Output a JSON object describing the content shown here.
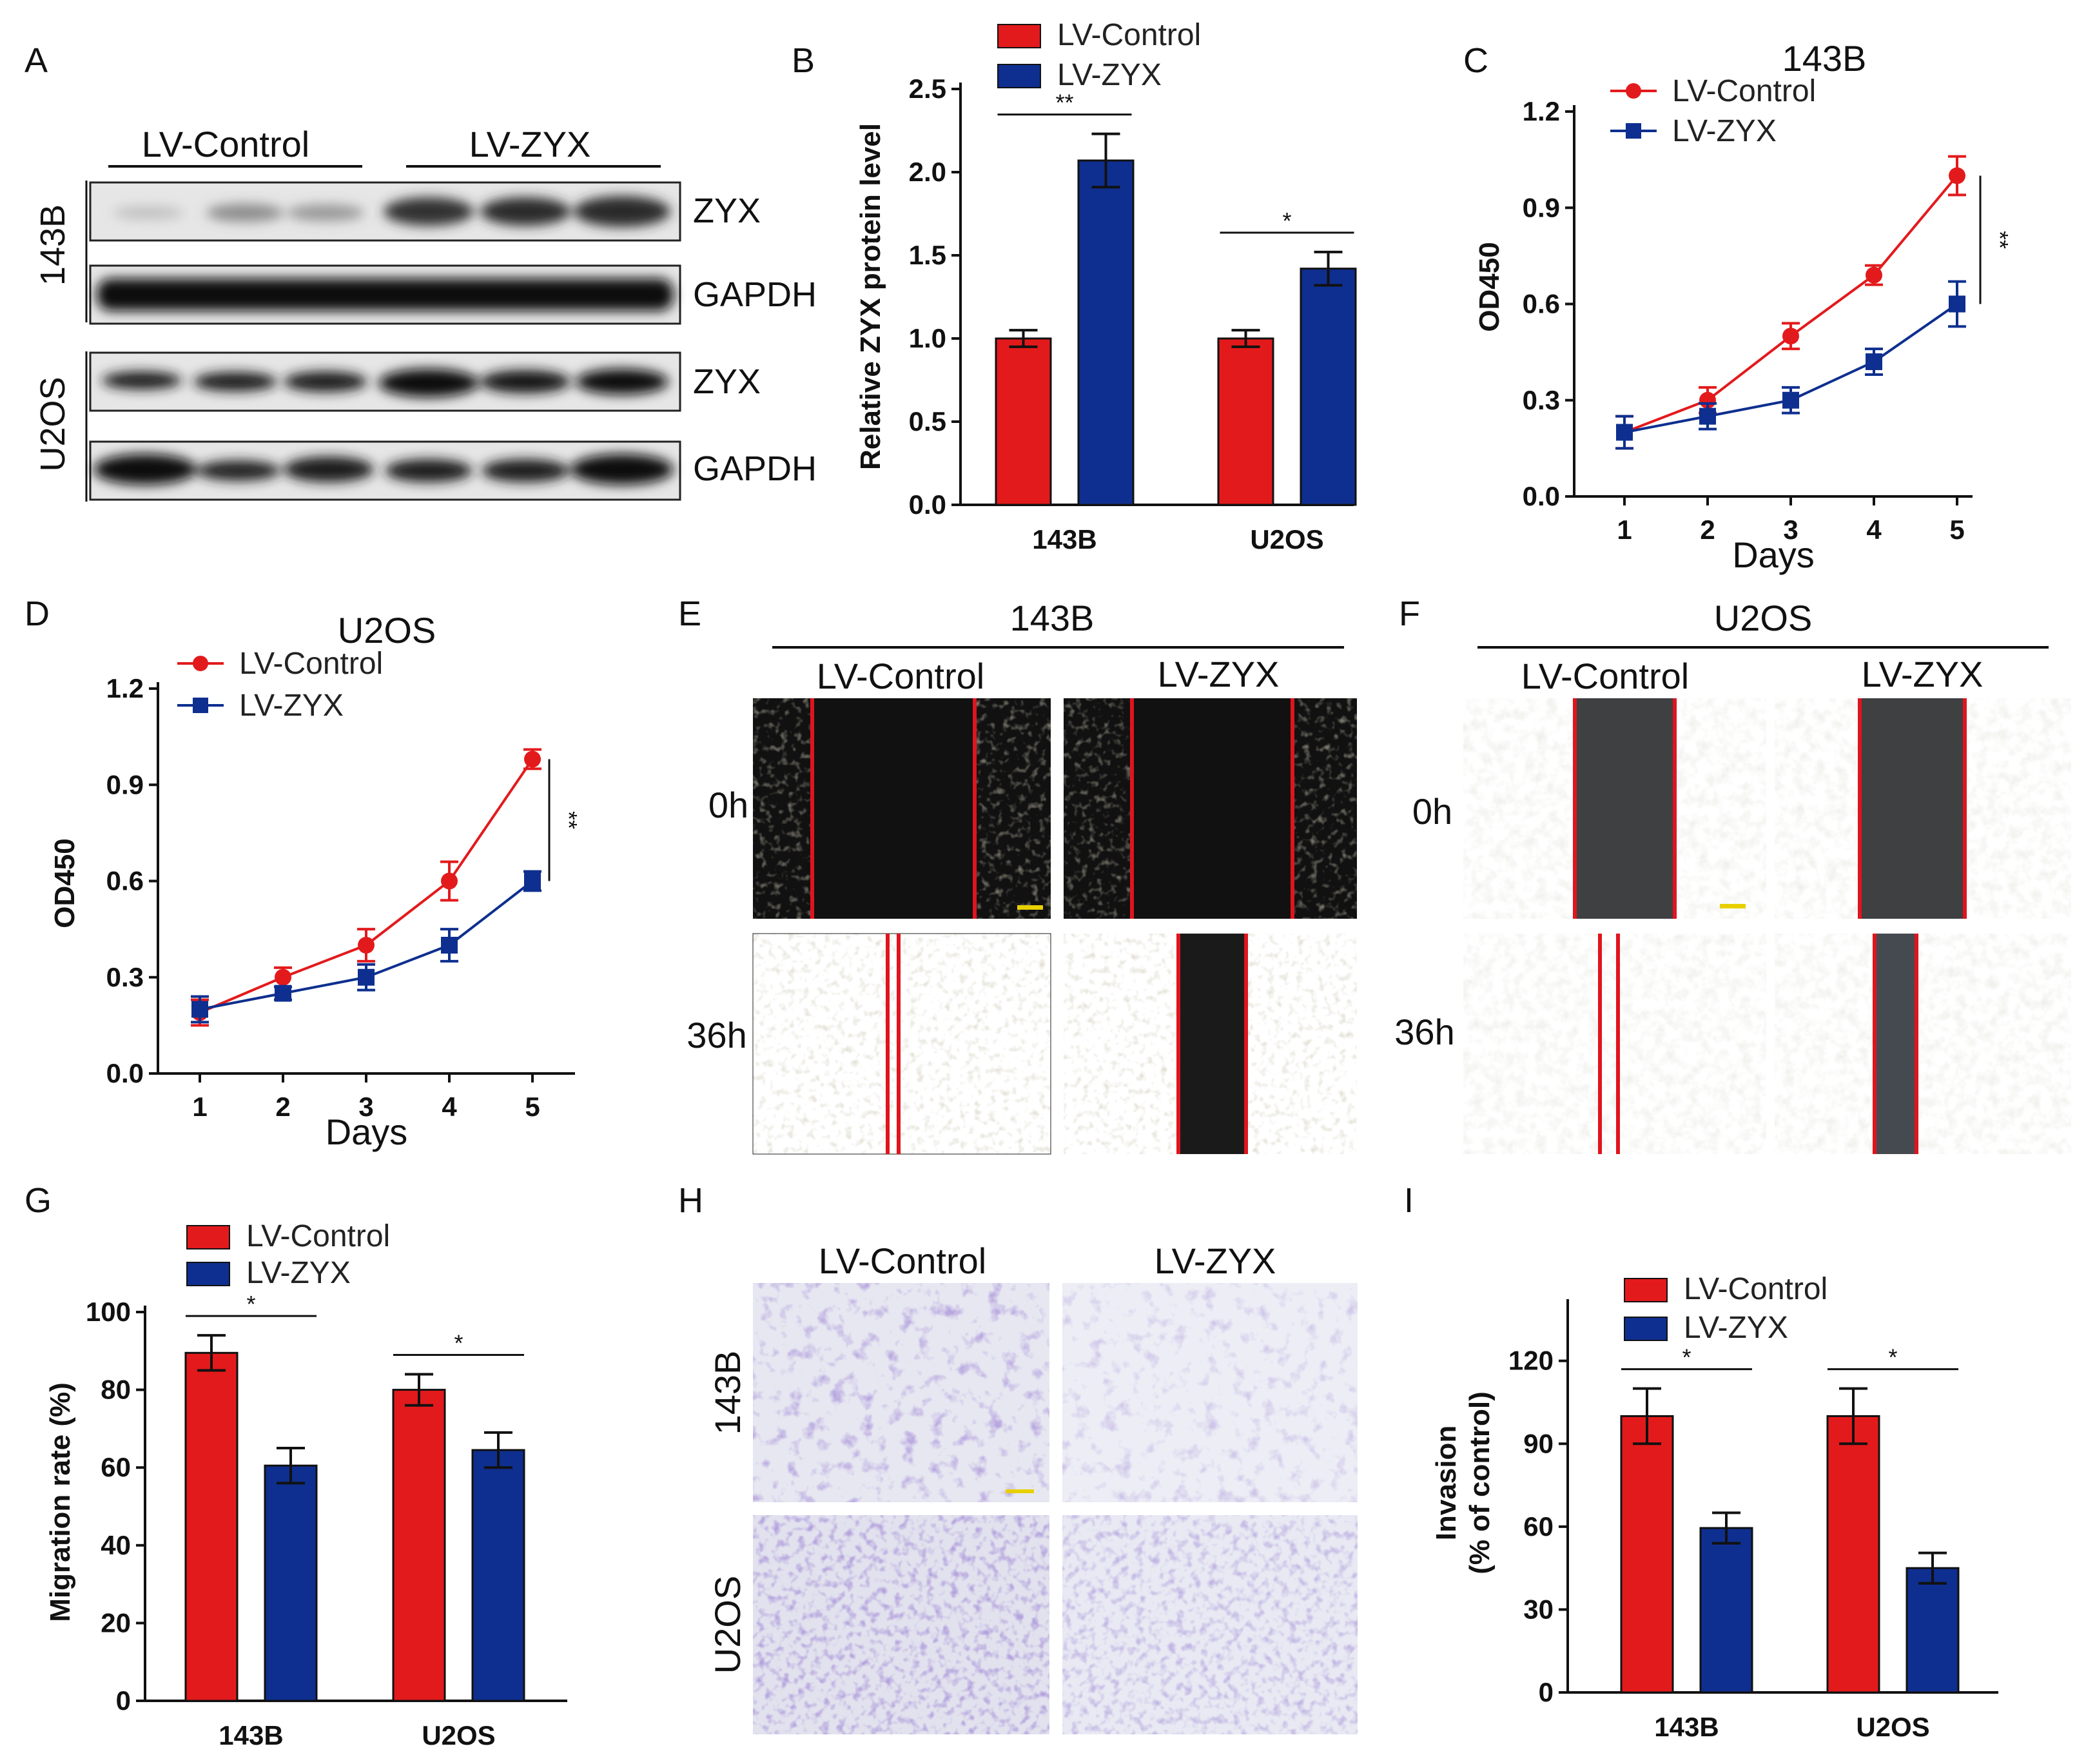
{
  "colors": {
    "control": "#e31a1c",
    "zyx": "#0e2f8f",
    "scalebar": "#e8d000",
    "wound_line": "#e0141e",
    "crystal_violet": "#7f67b8",
    "stain_bg": "#e8e9f3",
    "scratch_dark": "#141414",
    "scratch_blue": "#3a4046"
  },
  "labels": {
    "LV-Control": "LV-Control",
    "LV-ZYX": "LV-ZYX"
  },
  "panels": {
    "A": {
      "letter": "A",
      "group_labels": [
        "LV-Control",
        "LV-ZYX"
      ],
      "cell_lines": [
        "143B",
        "U2OS"
      ],
      "band_labels": [
        "ZYX",
        "GAPDH",
        "ZYX",
        "GAPDH"
      ]
    },
    "E": {
      "letter": "E",
      "cell_line": "143B",
      "col_labels": [
        "LV-Control",
        "LV-ZYX"
      ],
      "row_labels": [
        "0h",
        "36h"
      ]
    },
    "F": {
      "letter": "F",
      "cell_line": "U2OS",
      "col_labels": [
        "LV-Control",
        "LV-ZYX"
      ],
      "row_labels": [
        "0h",
        "36h"
      ]
    },
    "H": {
      "letter": "H",
      "col_labels": [
        "LV-Control",
        "LV-ZYX"
      ],
      "row_labels": [
        "143B",
        "U2OS"
      ]
    }
  },
  "chart_data": [
    {
      "panel": "B",
      "type": "bar",
      "categories": [
        "143B",
        "U2OS"
      ],
      "series": [
        {
          "name": "LV-Control",
          "values": [
            1.0,
            1.0
          ],
          "errors": [
            0.05,
            0.05
          ]
        },
        {
          "name": "LV-ZYX",
          "values": [
            2.07,
            1.42
          ],
          "errors": [
            0.16,
            0.1
          ]
        }
      ],
      "title": "",
      "xlabel": "",
      "ylabel": "Relative ZYX protein level",
      "ylim": [
        0,
        2.5
      ],
      "yticks": [
        "0.0",
        "0.5",
        "1.0",
        "1.5",
        "2.0",
        "2.5"
      ],
      "significance": [
        "**",
        "*"
      ],
      "legend": "top"
    },
    {
      "panel": "C",
      "type": "line",
      "title": "143B",
      "x": [
        1,
        2,
        3,
        4,
        5
      ],
      "xticks": [
        "1",
        "2",
        "3",
        "4",
        "5"
      ],
      "series": [
        {
          "name": "LV-Control",
          "values": [
            0.2,
            0.3,
            0.5,
            0.69,
            1.0
          ],
          "errors": [
            0.05,
            0.04,
            0.04,
            0.03,
            0.06
          ]
        },
        {
          "name": "LV-ZYX",
          "values": [
            0.2,
            0.25,
            0.3,
            0.42,
            0.6
          ],
          "errors": [
            0.05,
            0.04,
            0.04,
            0.04,
            0.07
          ]
        }
      ],
      "xlabel": "Days",
      "ylabel": "OD450",
      "ylim": [
        0,
        1.2
      ],
      "yticks": [
        "0.0",
        "0.3",
        "0.6",
        "0.9",
        "1.2"
      ],
      "significance": "**",
      "legend": "top-left"
    },
    {
      "panel": "D",
      "type": "line",
      "title": "U2OS",
      "x": [
        1,
        2,
        3,
        4,
        5
      ],
      "xticks": [
        "1",
        "2",
        "3",
        "4",
        "5"
      ],
      "series": [
        {
          "name": "LV-Control",
          "values": [
            0.19,
            0.3,
            0.4,
            0.6,
            0.98
          ],
          "errors": [
            0.04,
            0.03,
            0.05,
            0.06,
            0.03
          ]
        },
        {
          "name": "LV-ZYX",
          "values": [
            0.2,
            0.25,
            0.3,
            0.4,
            0.6
          ],
          "errors": [
            0.04,
            0.02,
            0.04,
            0.05,
            0.03
          ]
        }
      ],
      "xlabel": "Days",
      "ylabel": "OD450",
      "ylim": [
        0,
        1.2
      ],
      "yticks": [
        "0.0",
        "0.3",
        "0.6",
        "0.9",
        "1.2"
      ],
      "significance": "**",
      "legend": "top-left"
    },
    {
      "panel": "G",
      "type": "bar",
      "categories": [
        "143B",
        "U2OS"
      ],
      "series": [
        {
          "name": "LV-Control",
          "values": [
            89.5,
            80.0
          ],
          "errors": [
            4.5,
            4.0
          ]
        },
        {
          "name": "LV-ZYX",
          "values": [
            60.5,
            64.5
          ],
          "errors": [
            4.5,
            4.5
          ]
        }
      ],
      "title": "",
      "xlabel": "",
      "ylabel": "Migration rate (%)",
      "ylim": [
        0,
        100
      ],
      "yticks": [
        "0",
        "20",
        "40",
        "60",
        "80",
        "100"
      ],
      "significance": [
        "*",
        "*"
      ],
      "legend": "top"
    },
    {
      "panel": "I",
      "type": "bar",
      "categories": [
        "143B",
        "U2OS"
      ],
      "series": [
        {
          "name": "LV-Control",
          "values": [
            100,
            100
          ],
          "errors": [
            10,
            10
          ]
        },
        {
          "name": "LV-ZYX",
          "values": [
            59.5,
            45.0
          ],
          "errors": [
            5.5,
            5.5
          ]
        }
      ],
      "title": "",
      "xlabel": "",
      "ylabel": "Invasion",
      "ylabel2": "(% of control)",
      "ylim": [
        0,
        140
      ],
      "yticks": [
        "0",
        "30",
        "60",
        "90",
        "120"
      ],
      "significance": [
        "*",
        "*"
      ],
      "legend": "top"
    }
  ]
}
